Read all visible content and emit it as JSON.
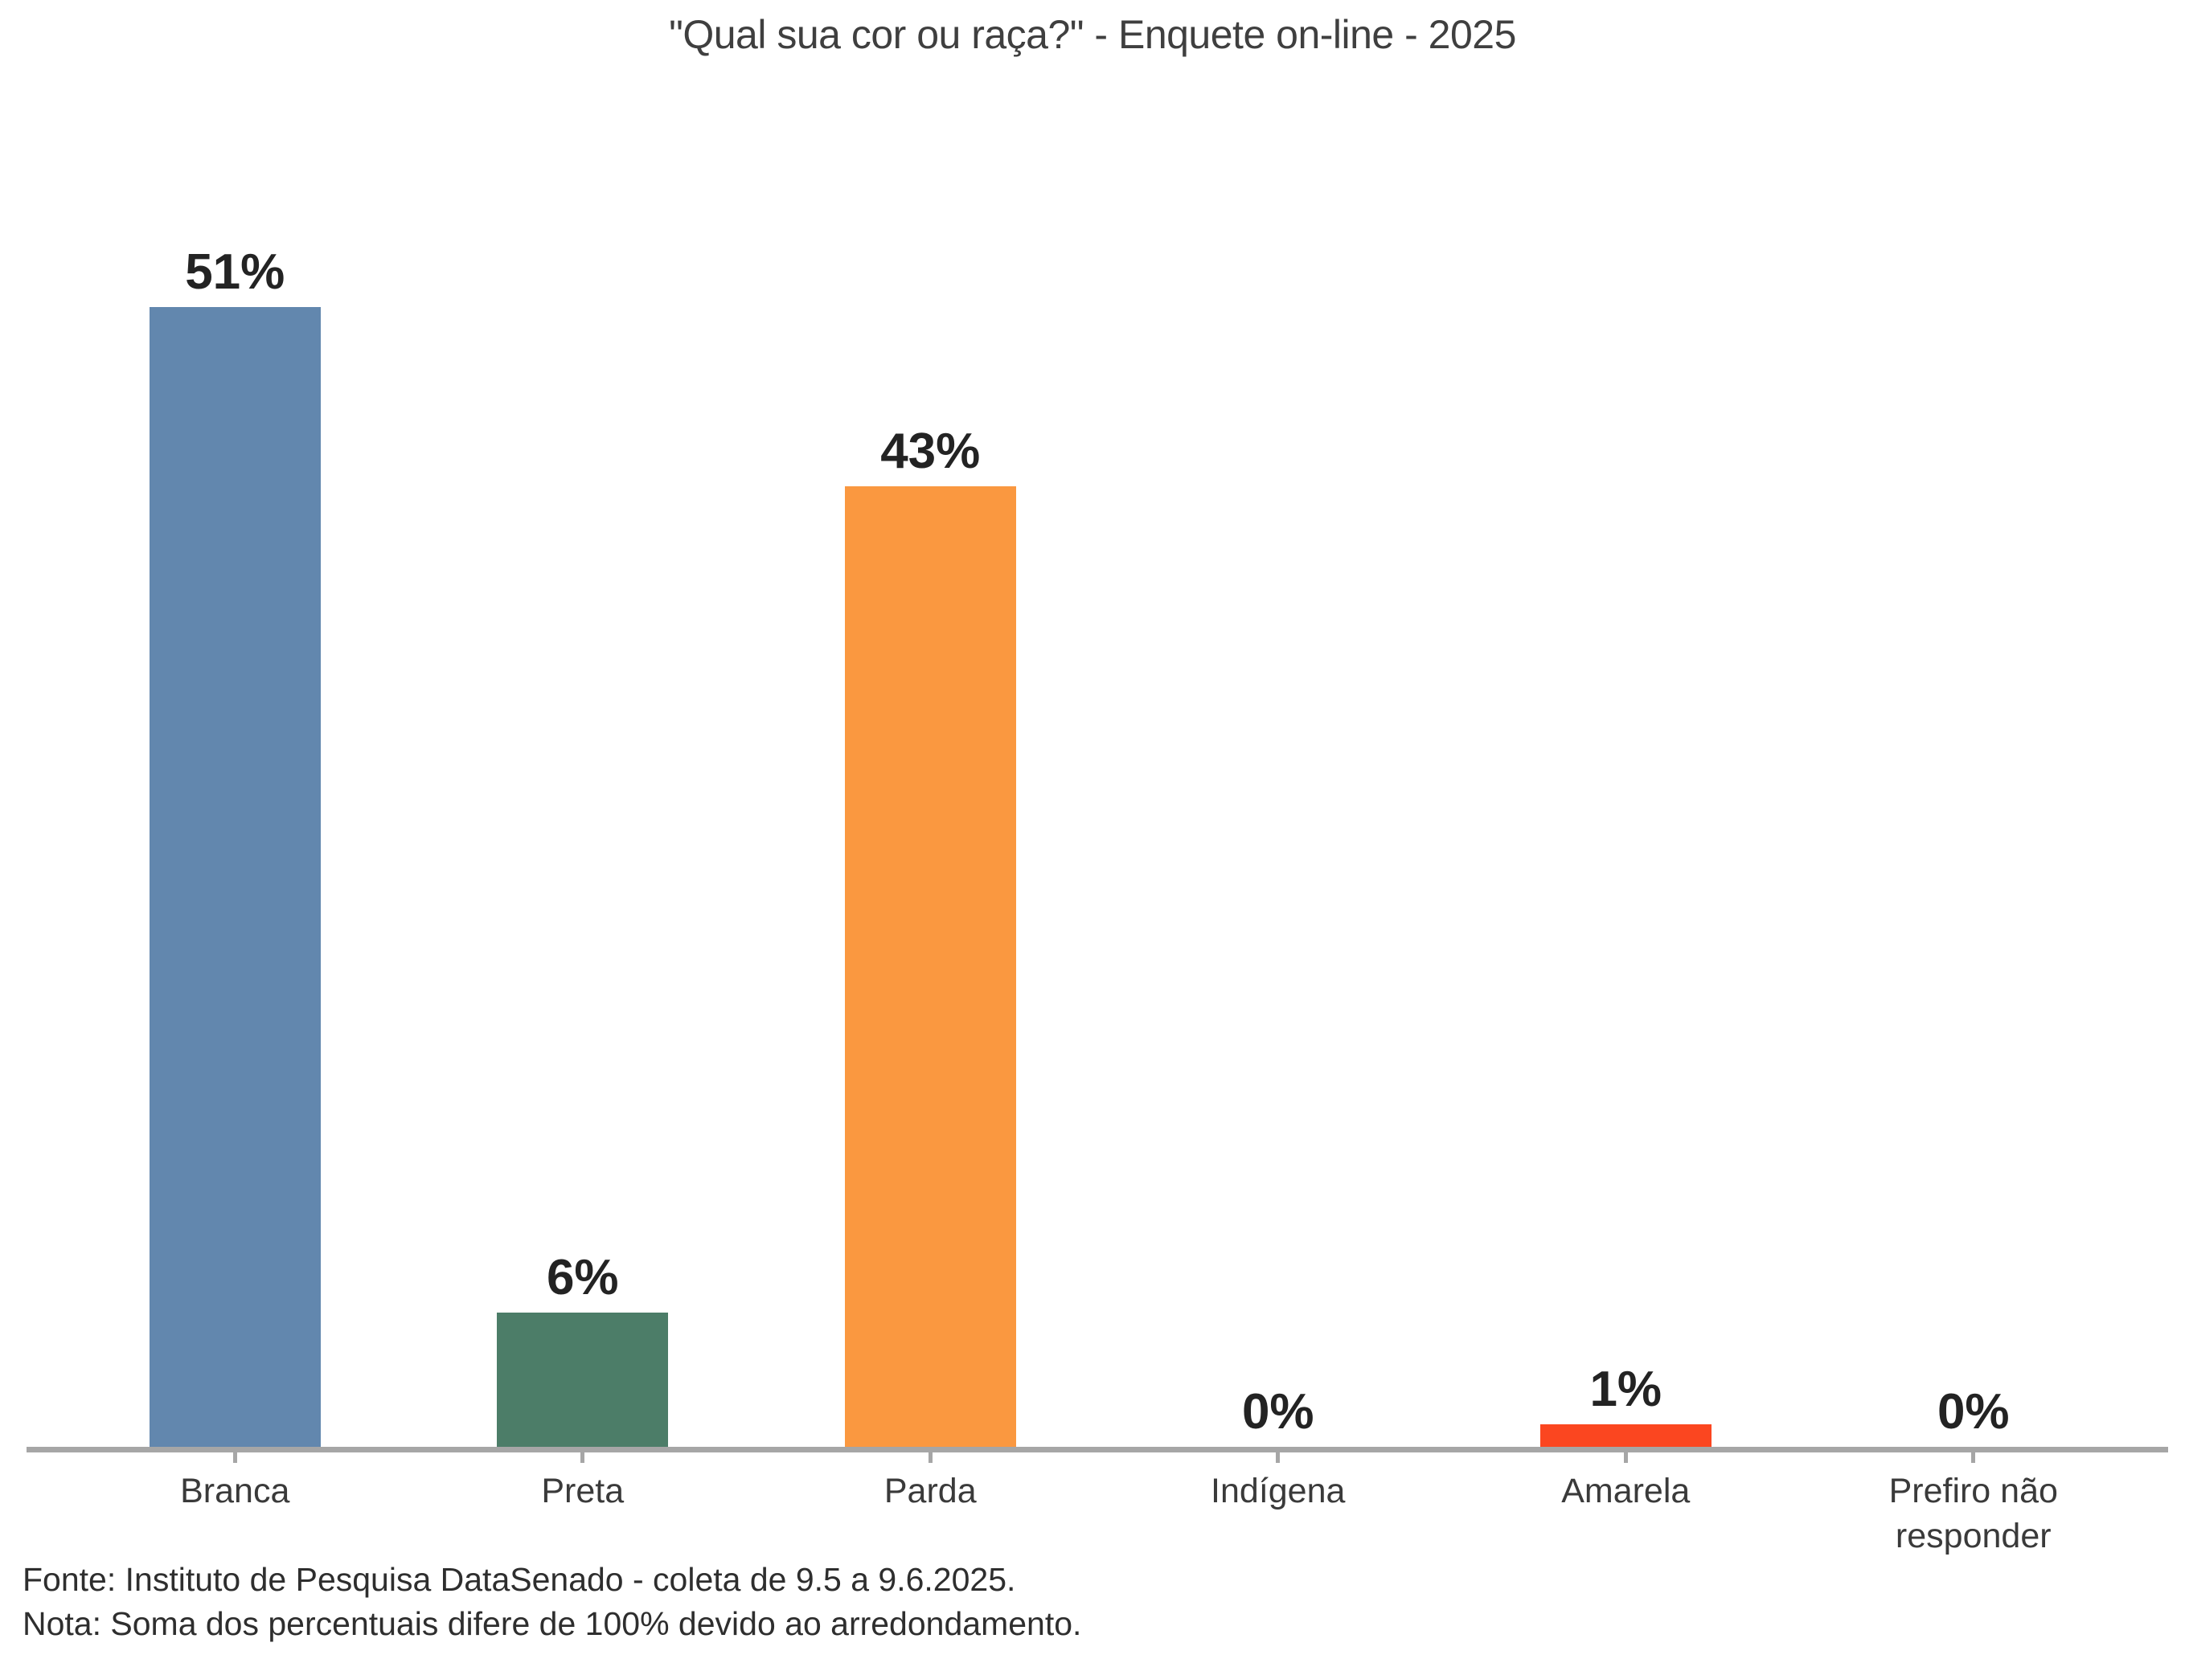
{
  "chart_data": {
    "type": "bar",
    "title": "\"Qual sua cor ou raça?\" - Enquete on-line - 2025",
    "categories": [
      "Branca",
      "Preta",
      "Parda",
      "Indígena",
      "Amarela",
      "Prefiro não responder"
    ],
    "values": [
      51,
      6,
      43,
      0,
      1,
      0
    ],
    "value_labels": [
      "51%",
      "6%",
      "43%",
      "0%",
      "1%",
      "0%"
    ],
    "colors": [
      "#6287AE",
      "#4C7D68",
      "#FA9840",
      null,
      "#FB4620",
      null
    ],
    "xlabel": "",
    "ylabel": "",
    "ylim": [
      0,
      55
    ],
    "grid": false,
    "legend": "none",
    "axis_color": "#A6A6A6",
    "annotations": [
      "Fonte: Instituto de Pesquisa DataSenado - coleta de 9.5 a 9.6.2025.",
      "Nota: Soma dos percentuais difere de 100% devido ao arredondamento."
    ]
  }
}
